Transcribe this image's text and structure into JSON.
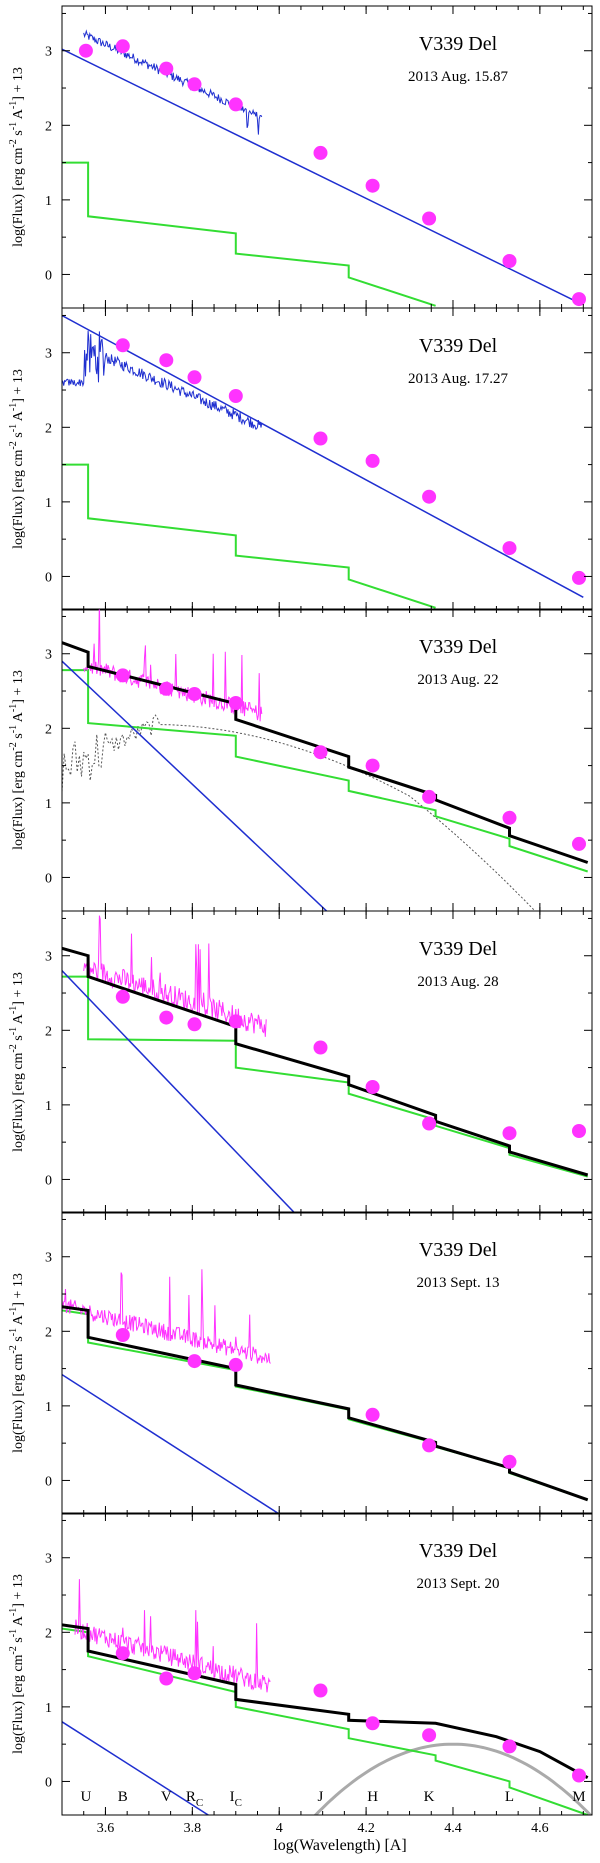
{
  "figure": {
    "xlabel": "log(Wavelength) [A]",
    "ylabel_main": "log(Flux) [erg cm",
    "ylabel_sup1": "-2",
    "ylabel_mid1": " s",
    "ylabel_sup2": "-1",
    "ylabel_mid2": " A",
    "ylabel_sup3": "-1",
    "ylabel_end": "] + 13",
    "x_ticks": [
      "3.6",
      "3.8",
      "4",
      "4.2",
      "4.4",
      "4.6"
    ],
    "y_ticks": [
      "0",
      "1",
      "2",
      "3"
    ],
    "bands": [
      {
        "name": "U",
        "sub": "",
        "x": 3.555
      },
      {
        "name": "B",
        "sub": "",
        "x": 3.64
      },
      {
        "name": "V",
        "sub": "",
        "x": 3.74
      },
      {
        "name": "R",
        "sub": "C",
        "x": 3.805
      },
      {
        "name": "I",
        "sub": "C",
        "x": 3.9
      },
      {
        "name": "J",
        "sub": "",
        "x": 4.095
      },
      {
        "name": "H",
        "sub": "",
        "x": 4.215
      },
      {
        "name": "K",
        "sub": "",
        "x": 4.345
      },
      {
        "name": "L",
        "sub": "",
        "x": 4.53
      },
      {
        "name": "M",
        "sub": "",
        "x": 4.69
      }
    ],
    "colors": {
      "photometry": "#ff33ff",
      "spectrum_early": "#1f2fd0",
      "spectrum_late": "#ff33ff",
      "hot_component": "#1f2fd0",
      "cool_component": "#33dd33",
      "total_model": "#000000",
      "dust": "#aaaaaa",
      "dotted_template": "#555555"
    }
  },
  "chart_data": [
    {
      "type": "line",
      "title": "V339 Del",
      "subtitle": "2013 Aug. 15.87",
      "xlim": [
        3.5,
        4.72
      ],
      "ylim": [
        -0.45,
        3.6
      ],
      "photometry": [
        [
          3.555,
          3.0
        ],
        [
          3.64,
          3.06
        ],
        [
          3.74,
          2.76
        ],
        [
          3.805,
          2.55
        ],
        [
          3.9,
          2.28
        ],
        [
          4.095,
          1.63
        ],
        [
          4.215,
          1.19
        ],
        [
          4.345,
          0.75
        ],
        [
          4.53,
          0.18
        ],
        [
          4.69,
          -0.33
        ]
      ],
      "hot_line": [
        [
          3.5,
          3.02
        ],
        [
          4.69,
          -0.38
        ]
      ],
      "cool_line": [
        [
          3.5,
          1.5
        ],
        [
          3.56,
          1.5
        ],
        [
          3.56,
          0.78
        ],
        [
          3.9,
          0.55
        ],
        [
          3.9,
          0.28
        ],
        [
          4.16,
          0.12
        ],
        [
          4.16,
          -0.04
        ],
        [
          4.36,
          -0.42
        ]
      ],
      "spectrum": {
        "kind": "blue",
        "x0": 3.55,
        "x1": 3.96,
        "y0": 3.22,
        "slope": -2.75,
        "noise": 0.12
      }
    },
    {
      "type": "line",
      "title": "V339 Del",
      "subtitle": "2013 Aug. 17.27",
      "xlim": [
        3.5,
        4.72
      ],
      "ylim": [
        -0.45,
        3.6
      ],
      "photometry": [
        [
          3.64,
          3.1
        ],
        [
          3.74,
          2.9
        ],
        [
          3.805,
          2.67
        ],
        [
          3.9,
          2.42
        ],
        [
          4.095,
          1.85
        ],
        [
          4.215,
          1.55
        ],
        [
          4.345,
          1.07
        ],
        [
          4.53,
          0.38
        ],
        [
          4.69,
          -0.02
        ]
      ],
      "hot_line": [
        [
          3.5,
          3.5
        ],
        [
          4.7,
          -0.28
        ]
      ],
      "cool_line": [
        [
          3.5,
          1.5
        ],
        [
          3.56,
          1.5
        ],
        [
          3.56,
          0.78
        ],
        [
          3.9,
          0.55
        ],
        [
          3.9,
          0.28
        ],
        [
          4.16,
          0.12
        ],
        [
          4.16,
          -0.04
        ],
        [
          4.36,
          -0.42
        ]
      ],
      "spectrum": {
        "kind": "blue2",
        "x0": 3.5,
        "x1": 3.96,
        "y0": 3.2,
        "slope": -2.6,
        "noise": 0.15
      }
    },
    {
      "type": "line",
      "title": "V339 Del",
      "subtitle": "2013 Aug. 22",
      "xlim": [
        3.5,
        4.72
      ],
      "ylim": [
        -0.45,
        3.6
      ],
      "photometry": [
        [
          3.64,
          2.71
        ],
        [
          3.74,
          2.53
        ],
        [
          3.805,
          2.46
        ],
        [
          3.9,
          2.34
        ],
        [
          4.095,
          1.68
        ],
        [
          4.215,
          1.5
        ],
        [
          4.345,
          1.08
        ],
        [
          4.53,
          0.8
        ],
        [
          4.69,
          0.45
        ]
      ],
      "hot_line": [
        [
          3.5,
          2.9
        ],
        [
          4.14,
          -0.62
        ]
      ],
      "cool_line": [
        [
          3.5,
          2.78
        ],
        [
          3.56,
          2.78
        ],
        [
          3.56,
          2.07
        ],
        [
          3.9,
          1.9
        ],
        [
          3.9,
          1.62
        ],
        [
          4.16,
          1.3
        ],
        [
          4.16,
          1.16
        ],
        [
          4.36,
          0.9
        ],
        [
          4.36,
          0.82
        ],
        [
          4.53,
          0.52
        ],
        [
          4.53,
          0.42
        ],
        [
          4.71,
          0.08
        ]
      ],
      "total_line": [
        [
          3.5,
          3.15
        ],
        [
          3.56,
          3.02
        ],
        [
          3.56,
          2.83
        ],
        [
          3.9,
          2.33
        ],
        [
          3.9,
          2.12
        ],
        [
          4.16,
          1.62
        ],
        [
          4.16,
          1.48
        ],
        [
          4.36,
          1.1
        ],
        [
          4.36,
          1.04
        ],
        [
          4.53,
          0.66
        ],
        [
          4.53,
          0.56
        ],
        [
          4.71,
          0.2
        ]
      ],
      "dotted_line": true,
      "spectrum": {
        "kind": "magenta",
        "x0": 3.55,
        "x1": 3.96,
        "y0": 2.85,
        "slope": -1.6,
        "noise": 0.22
      }
    },
    {
      "type": "line",
      "title": "V339 Del",
      "subtitle": "2013 Aug. 28",
      "xlim": [
        3.5,
        4.72
      ],
      "ylim": [
        -0.45,
        3.6
      ],
      "photometry": [
        [
          3.64,
          2.45
        ],
        [
          3.74,
          2.17
        ],
        [
          3.805,
          2.08
        ],
        [
          3.9,
          2.12
        ],
        [
          4.095,
          1.77
        ],
        [
          4.215,
          1.24
        ],
        [
          4.345,
          0.75
        ],
        [
          4.53,
          0.62
        ],
        [
          4.69,
          0.65
        ]
      ],
      "hot_line": [
        [
          3.5,
          2.8
        ],
        [
          4.08,
          -0.72
        ]
      ],
      "cool_line": [
        [
          3.5,
          2.72
        ],
        [
          3.56,
          2.72
        ],
        [
          3.56,
          1.88
        ],
        [
          3.9,
          1.86
        ],
        [
          3.9,
          1.5
        ],
        [
          4.16,
          1.3
        ],
        [
          4.16,
          1.15
        ],
        [
          4.36,
          0.8
        ],
        [
          4.36,
          0.72
        ],
        [
          4.53,
          0.42
        ],
        [
          4.53,
          0.33
        ],
        [
          4.71,
          0.04
        ]
      ],
      "total_line": [
        [
          3.5,
          3.1
        ],
        [
          3.56,
          3.0
        ],
        [
          3.56,
          2.72
        ],
        [
          3.9,
          2.05
        ],
        [
          3.9,
          1.82
        ],
        [
          4.16,
          1.38
        ],
        [
          4.16,
          1.27
        ],
        [
          4.36,
          0.86
        ],
        [
          4.36,
          0.78
        ],
        [
          4.53,
          0.45
        ],
        [
          4.53,
          0.37
        ],
        [
          4.71,
          0.06
        ]
      ],
      "spectrum": {
        "kind": "magenta",
        "x0": 3.55,
        "x1": 3.97,
        "y0": 2.85,
        "slope": -1.9,
        "noise": 0.3
      }
    },
    {
      "type": "line",
      "title": "V339 Del",
      "subtitle": "2013 Sept. 13",
      "xlim": [
        3.5,
        4.72
      ],
      "ylim": [
        -0.45,
        3.6
      ],
      "photometry": [
        [
          3.64,
          1.95
        ],
        [
          3.805,
          1.6
        ],
        [
          3.9,
          1.55
        ],
        [
          4.215,
          0.88
        ],
        [
          4.345,
          0.47
        ],
        [
          4.53,
          0.25
        ]
      ],
      "hot_line": [
        [
          3.5,
          1.42
        ],
        [
          4.0,
          -0.45
        ]
      ],
      "cool_line": [
        [
          3.5,
          2.28
        ],
        [
          3.56,
          2.23
        ],
        [
          3.56,
          1.85
        ],
        [
          3.9,
          1.48
        ],
        [
          3.9,
          1.26
        ],
        [
          4.16,
          0.95
        ],
        [
          4.16,
          0.82
        ],
        [
          4.36,
          0.5
        ],
        [
          4.36,
          0.45
        ],
        [
          4.53,
          0.17
        ],
        [
          4.53,
          0.1
        ],
        [
          4.71,
          -0.26
        ]
      ],
      "total_line": [
        [
          3.5,
          2.33
        ],
        [
          3.56,
          2.28
        ],
        [
          3.56,
          1.92
        ],
        [
          3.9,
          1.5
        ],
        [
          3.9,
          1.28
        ],
        [
          4.16,
          0.96
        ],
        [
          4.16,
          0.84
        ],
        [
          4.36,
          0.51
        ],
        [
          4.36,
          0.46
        ],
        [
          4.53,
          0.17
        ],
        [
          4.53,
          0.11
        ],
        [
          4.71,
          -0.26
        ]
      ],
      "spectrum": {
        "kind": "magenta",
        "x0": 3.5,
        "x1": 3.98,
        "y0": 2.35,
        "slope": -1.5,
        "noise": 0.22
      }
    },
    {
      "type": "line",
      "title": "V339 Del",
      "subtitle": "2013 Sept. 20",
      "xlim": [
        3.5,
        4.72
      ],
      "ylim": [
        -0.45,
        3.6
      ],
      "photometry": [
        [
          3.64,
          1.72
        ],
        [
          3.74,
          1.38
        ],
        [
          3.805,
          1.45
        ],
        [
          4.095,
          1.22
        ],
        [
          4.215,
          0.78
        ],
        [
          4.345,
          0.62
        ],
        [
          4.53,
          0.47
        ],
        [
          4.69,
          0.08
        ]
      ],
      "hot_line": [
        [
          3.5,
          0.8
        ],
        [
          3.85,
          -0.5
        ]
      ],
      "cool_line": [
        [
          3.5,
          2.05
        ],
        [
          3.56,
          2.0
        ],
        [
          3.56,
          1.68
        ],
        [
          3.9,
          1.2
        ],
        [
          3.9,
          1.0
        ],
        [
          4.16,
          0.7
        ],
        [
          4.16,
          0.58
        ],
        [
          4.36,
          0.35
        ],
        [
          4.36,
          0.28
        ],
        [
          4.53,
          0.0
        ],
        [
          4.53,
          -0.08
        ],
        [
          4.71,
          -0.45
        ]
      ],
      "total_line": [
        [
          3.5,
          2.1
        ],
        [
          3.56,
          2.05
        ],
        [
          3.56,
          1.75
        ],
        [
          3.9,
          1.3
        ],
        [
          3.9,
          1.1
        ],
        [
          4.16,
          0.9
        ],
        [
          4.16,
          0.82
        ],
        [
          4.36,
          0.78
        ],
        [
          4.5,
          0.6
        ],
        [
          4.6,
          0.4
        ],
        [
          4.71,
          0.05
        ]
      ],
      "dust_curve": true,
      "show_bands": true,
      "spectrum": {
        "kind": "magenta",
        "x0": 3.53,
        "x1": 3.98,
        "y0": 2.05,
        "slope": -1.7,
        "noise": 0.25
      }
    }
  ]
}
